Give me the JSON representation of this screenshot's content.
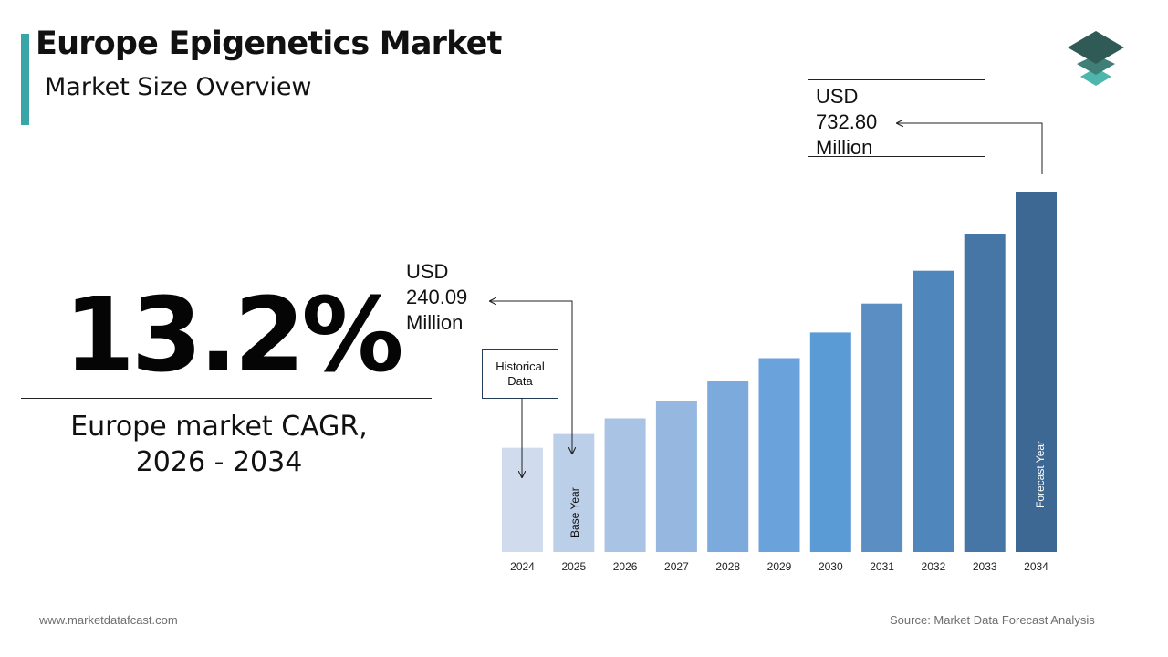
{
  "header": {
    "title": "Europe Epigenetics Market",
    "subtitle": "Market Size Overview"
  },
  "cagr": {
    "value": "13.2%",
    "label_line1": "Europe market CAGR,",
    "label_line2": "2026 - 2034"
  },
  "callouts": {
    "end_value": [
      "USD",
      "732.80",
      "Million"
    ],
    "base_value": [
      "USD",
      "240.09",
      "Million"
    ],
    "historical": [
      "Historical",
      "Data"
    ]
  },
  "bar_labels": {
    "base_year": "Base Year",
    "forecast_year": "Forecast Year"
  },
  "footer": {
    "website": "www.marketdatafcast.com",
    "source": "Source: Market Data Forecast Analysis"
  },
  "colors": {
    "accent_teal": "#3aa5a6",
    "logo_dark": "#2f5a55",
    "logo_mid": "#3f7f77",
    "logo_light": "#4fb6ac",
    "bars": [
      "#d0dcee",
      "#bccfe8",
      "#a9c3e5",
      "#95b7e0",
      "#7daadd",
      "#6aa2dc",
      "#5b9bd5",
      "#5b8fc4",
      "#4f86bb",
      "#4676a6",
      "#3d6893"
    ]
  },
  "chart_data": {
    "type": "bar",
    "categories": [
      "2024",
      "2025",
      "2026",
      "2027",
      "2028",
      "2029",
      "2030",
      "2031",
      "2032",
      "2033",
      "2034"
    ],
    "values": [
      212.0,
      240.09,
      271.8,
      307.7,
      348.3,
      394.3,
      446.3,
      505.2,
      571.9,
      647.4,
      732.8
    ],
    "units": "USD Million",
    "ylim": [
      0,
      732.8
    ],
    "grid": false,
    "legend": "none"
  }
}
